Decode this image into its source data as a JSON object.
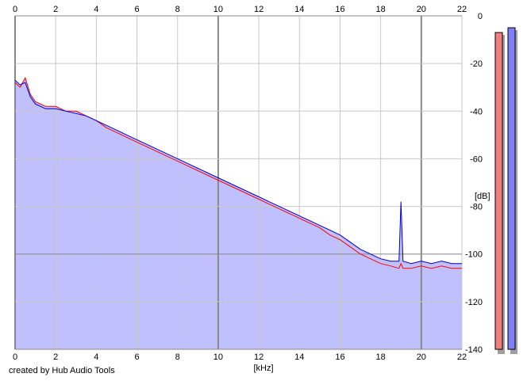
{
  "credit": "created by Hub Audio Tools",
  "colors": {
    "background": "#ffffff",
    "plot_background": "#ffffff",
    "fill": "#c0c0ff",
    "left_channel": "#ff0000",
    "right_channel": "#0000cc",
    "grid_minor": "#c8c8c8",
    "grid_major": "#888888",
    "meter_left": "#f08080",
    "meter_right": "#8080ff",
    "meter_shadow": "#a0a0a0"
  },
  "chart_data": {
    "type": "line",
    "title": "",
    "xlabel": "[kHz]",
    "ylabel": "[dB]",
    "xlim": [
      0,
      22
    ],
    "ylim": [
      -140,
      0
    ],
    "x_ticks": [
      "0",
      "2",
      "4",
      "6",
      "8",
      "10",
      "12",
      "14",
      "16",
      "18",
      "20",
      "22"
    ],
    "y_ticks": [
      "0",
      "-20",
      "-40",
      "-60",
      "-80",
      "-100",
      "-120",
      "-140"
    ],
    "grid": true,
    "legend": "none",
    "x": [
      0,
      0.25,
      0.5,
      0.75,
      1,
      1.5,
      2,
      2.5,
      3,
      3.5,
      4,
      4.5,
      5,
      5.5,
      6,
      6.5,
      7,
      7.5,
      8,
      8.5,
      9,
      9.5,
      10,
      10.5,
      11,
      11.5,
      12,
      12.5,
      13,
      13.5,
      14,
      14.5,
      15,
      15.5,
      16,
      16.5,
      17,
      17.5,
      18,
      18.5,
      18.9,
      19,
      19.1,
      19.5,
      20,
      20.5,
      21,
      21.5,
      22
    ],
    "series": [
      {
        "values": [
          -28,
          -30,
          -26,
          -33,
          -36,
          -38,
          -38,
          -40,
          -40,
          -42,
          -44,
          -47,
          -49,
          -51,
          -53,
          -55,
          -57,
          -59,
          -61,
          -63,
          -65,
          -67,
          -69,
          -71,
          -73,
          -75,
          -77,
          -79,
          -81,
          -83,
          -85,
          -87,
          -89,
          -92,
          -94,
          -97,
          -100,
          -102,
          -104,
          -105,
          -106,
          -104,
          -106,
          -106,
          -105,
          -106,
          -105,
          -106,
          -106
        ]
      },
      {
        "values": [
          -27,
          -29,
          -28,
          -34,
          -37,
          -39,
          -39,
          -40,
          -41,
          -42,
          -44,
          -46,
          -48,
          -50,
          -52,
          -54,
          -56,
          -58,
          -60,
          -62,
          -64,
          -66,
          -68,
          -70,
          -72,
          -74,
          -76,
          -78,
          -80,
          -82,
          -84,
          -86,
          -88,
          -90,
          -92,
          -95,
          -98,
          -100,
          -102,
          -103,
          -103,
          -78,
          -103,
          -104,
          -103,
          -104,
          -103,
          -104,
          -104
        ]
      }
    ]
  },
  "meters": {
    "left_level": -7,
    "right_level": -5
  }
}
